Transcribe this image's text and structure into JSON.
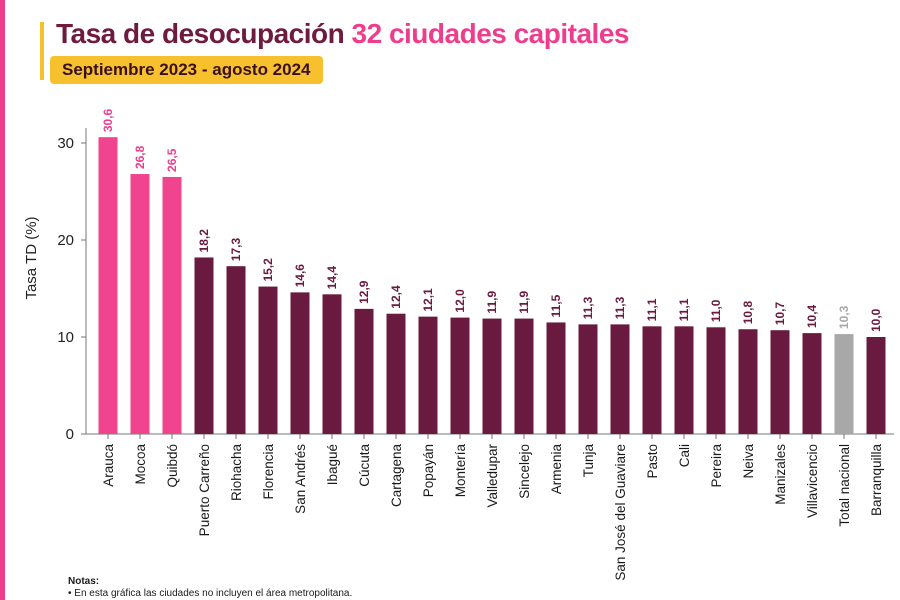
{
  "header": {
    "title_main": "Tasa de desocupación",
    "title_highlight": "32 ciudades capitales",
    "subtitle": "Septiembre 2023 - agosto 2024"
  },
  "colors": {
    "brand_pink": "#ee3d8c",
    "bar_top": "#f0448f",
    "bar_default": "#6a1a3e",
    "bar_national": "#a8a8a8",
    "badge": "#f6c12c"
  },
  "chart_data": {
    "type": "bar",
    "ylabel": "Tasa TD (%)",
    "xlabel": "",
    "ylim": [
      0,
      30
    ],
    "yticks": [
      0,
      10,
      20,
      30
    ],
    "categories": [
      "Arauca",
      "Mocoa",
      "Quibdó",
      "Puerto Carreño",
      "Riohacha",
      "Florencia",
      "San Andrés",
      "Ibagué",
      "Cúcuta",
      "Cartagena",
      "Popayán",
      "Montería",
      "Valledupar",
      "Sincelejo",
      "Armenia",
      "Tunja",
      "San José del Guaviare",
      "Pasto",
      "Cali",
      "Pereira",
      "Neiva",
      "Manizales",
      "Villavicencio",
      "Total nacional",
      "Barranquilla"
    ],
    "values": [
      30.6,
      26.8,
      26.5,
      18.2,
      17.3,
      15.2,
      14.6,
      14.4,
      12.9,
      12.4,
      12.1,
      12.0,
      11.9,
      11.9,
      11.5,
      11.3,
      11.3,
      11.1,
      11.1,
      11.0,
      10.8,
      10.7,
      10.4,
      10.3,
      10.0
    ],
    "value_labels": [
      "30,6",
      "26,8",
      "26,5",
      "18,2",
      "17,3",
      "15,2",
      "14,6",
      "14,4",
      "12,9",
      "12,4",
      "12,1",
      "12,0",
      "11,9",
      "11,9",
      "11,5",
      "11,3",
      "11,3",
      "11,1",
      "11,1",
      "11,0",
      "10,8",
      "10,7",
      "10,4",
      "10,3",
      "10,0"
    ],
    "highlight_top": [
      "Arauca",
      "Mocoa",
      "Quibdó"
    ],
    "highlight_national": "Total nacional",
    "grid": false,
    "legend": "none"
  },
  "notes": {
    "heading": "Notas:",
    "line1": "• En esta gráfica las ciudades no incluyen el área metropolitana."
  }
}
